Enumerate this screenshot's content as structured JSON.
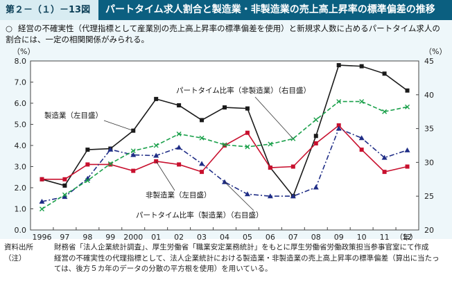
{
  "header": {
    "figure_label": "第２－（１）－13図",
    "title": "パートタイム求人割合と製造業・非製造業の売上高上昇率の標準偏差の推移"
  },
  "summary": {
    "bullet": "○",
    "text": "経営の不確実性（代理指標として産業別の売上高上昇率の標準偏差を使用）と新規求人数に占めるパートタイム求人の割合には、一定の相関関係がみられる。"
  },
  "colors": {
    "manufacturing": "#1a1a1a",
    "non_manufacturing": "#c8102e",
    "part_time_manufacturing": "#1f2d86",
    "part_time_non_manufacturing": "#1aa04a"
  },
  "chart_data": {
    "type": "line",
    "categories": [
      "1996",
      "97",
      "98",
      "99",
      "2000",
      "01",
      "02",
      "03",
      "04",
      "05",
      "06",
      "07",
      "08",
      "09",
      "10",
      "11",
      "12"
    ],
    "x_unit": "（年）",
    "left_axis": {
      "unit": "（%）",
      "min": 0,
      "max": 8,
      "ticks": [
        "0.0",
        "1.0",
        "2.0",
        "3.0",
        "4.0",
        "5.0",
        "6.0",
        "7.0",
        "8.0"
      ]
    },
    "right_axis": {
      "unit": "（%）",
      "min": 20,
      "max": 45,
      "ticks": [
        "20",
        "25",
        "30",
        "35",
        "40",
        "45"
      ]
    },
    "grid": false,
    "series": [
      {
        "name": "製造業（左目盛）",
        "axis": "left",
        "color": "#1a1a1a",
        "marker": "square",
        "dash": "solid",
        "values": [
          2.4,
          2.1,
          3.8,
          3.85,
          4.7,
          6.2,
          5.9,
          5.2,
          5.8,
          5.75,
          2.95,
          1.6,
          4.45,
          7.8,
          7.75,
          7.4,
          6.6
        ]
      },
      {
        "name": "非製造業（左目盛）",
        "axis": "left",
        "color": "#c8102e",
        "marker": "square",
        "dash": "solid",
        "values": [
          2.4,
          2.4,
          3.1,
          3.1,
          2.8,
          3.25,
          3.1,
          2.75,
          4.0,
          4.6,
          2.95,
          3.0,
          4.1,
          4.95,
          3.8,
          2.75,
          3.0
        ]
      },
      {
        "name": "パートタイム比率（製造業）（右目盛）",
        "axis": "right",
        "color": "#1f2d86",
        "marker": "triangle",
        "dash": "dashdot",
        "values": [
          24.2,
          24.9,
          27.6,
          31.9,
          31.1,
          31.0,
          32.2,
          29.8,
          27.1,
          25.3,
          25.0,
          25.0,
          26.3,
          35.0,
          33.6,
          30.7,
          31.8
        ]
      },
      {
        "name": "パートタイム比率（非製造業）（右目盛）",
        "axis": "right",
        "color": "#1aa04a",
        "marker": "x",
        "dash": "dashed",
        "values": [
          23.1,
          25.2,
          27.3,
          29.8,
          31.7,
          32.5,
          34.2,
          33.6,
          32.6,
          32.3,
          32.7,
          33.5,
          36.3,
          39.0,
          39.0,
          37.5,
          38.2
        ]
      }
    ],
    "annotations": [
      {
        "text": "製造業（左目盛）",
        "series": 0
      },
      {
        "text": "パートタイム比率（非製造業）（右目盛）",
        "series": 3
      },
      {
        "text": "非製造業（左目盛）",
        "series": 1
      },
      {
        "text": "パートタイム比率（製造業）（右目盛）",
        "series": 2
      }
    ]
  },
  "notes": [
    {
      "key": "資料出所",
      "text": "財務省「法人企業統計調査」、厚生労働省「職業安定業務統計」をもとに厚生労働省労働政策担当参事官室にて作成"
    },
    {
      "key": "（注）",
      "text": "経営の不確実性の代理指標として、法人企業統計における製造業・非製造業の売上高上昇率の標準偏差（算出に当たっては、後方５カ年のデータの分散の平方根を使用）を用いている。"
    }
  ]
}
